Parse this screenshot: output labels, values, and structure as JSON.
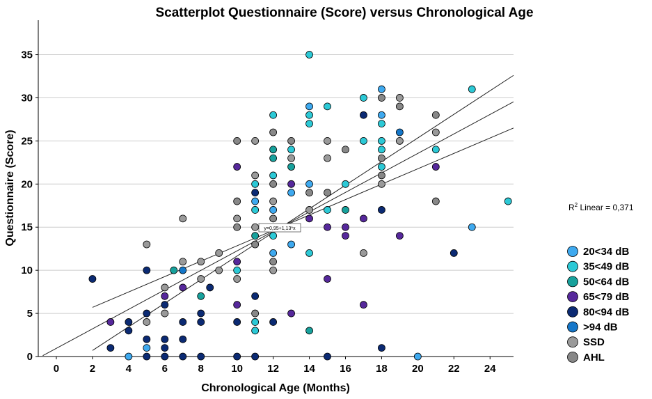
{
  "chart_data": {
    "type": "scatter",
    "title": "Scatterplot  Questionnaire (Score) versus Chronological Age",
    "xlabel": "Chronological Age (Months)",
    "ylabel": "Questionnaire (Score)",
    "xlim": [
      -1,
      25.3
    ],
    "ylim": [
      0,
      39
    ],
    "xticks": [
      "0",
      "2",
      "4",
      "6",
      "8",
      "10",
      "12",
      "14",
      "16",
      "18",
      "20",
      "22",
      "24"
    ],
    "xtick_values": [
      0,
      2,
      4,
      6,
      8,
      10,
      12,
      14,
      16,
      18,
      20,
      22,
      24
    ],
    "yticks": [
      "0",
      "5",
      "10",
      "15",
      "20",
      "25",
      "30",
      "35"
    ],
    "ytick_values": [
      0,
      5,
      10,
      15,
      20,
      25,
      30,
      35
    ],
    "grid": "horizontal",
    "r2_prefix": "R",
    "r2_sup": "2",
    "r2_text": " Linear = 0,371",
    "fit_equation": "y=0,95+1,13*x",
    "fit": {
      "intercept": 0.95,
      "slope": 1.13,
      "ci_upper": [
        [
          2,
          5.7
        ],
        [
          25.3,
          26.5
        ]
      ],
      "ci_lower": [
        [
          2,
          0.7
        ],
        [
          25.3,
          32.6
        ]
      ]
    },
    "series": [
      {
        "name": "20<34 dB",
        "color": "#3ea9ef",
        "points": [
          [
            4,
            0
          ],
          [
            5,
            1
          ],
          [
            11,
            18
          ],
          [
            12,
            17
          ],
          [
            12,
            12
          ],
          [
            13,
            19
          ],
          [
            14,
            29
          ],
          [
            14,
            20
          ],
          [
            18,
            31
          ],
          [
            18,
            28
          ],
          [
            23,
            15
          ],
          [
            13,
            13
          ],
          [
            20,
            0
          ]
        ]
      },
      {
        "name": "35<49 dB",
        "color": "#2cc9d6",
        "points": [
          [
            10,
            10
          ],
          [
            11,
            20
          ],
          [
            11,
            17
          ],
          [
            11,
            4
          ],
          [
            11,
            3
          ],
          [
            12,
            28
          ],
          [
            12,
            21
          ],
          [
            12,
            14
          ],
          [
            13,
            24
          ],
          [
            14,
            35
          ],
          [
            14,
            28
          ],
          [
            14,
            27
          ],
          [
            14,
            12
          ],
          [
            15,
            29
          ],
          [
            15,
            17
          ],
          [
            16,
            20
          ],
          [
            17,
            30
          ],
          [
            17,
            25
          ],
          [
            18,
            27
          ],
          [
            18,
            25
          ],
          [
            18,
            24
          ],
          [
            18,
            22
          ],
          [
            21,
            24
          ],
          [
            23,
            31
          ],
          [
            25,
            18
          ]
        ]
      },
      {
        "name": "50<64 dB",
        "color": "#17a19c",
        "points": [
          [
            6.5,
            10
          ],
          [
            8,
            7
          ],
          [
            11,
            14
          ],
          [
            12,
            24
          ],
          [
            12,
            23
          ],
          [
            13,
            22
          ],
          [
            14,
            3
          ],
          [
            16,
            17
          ]
        ]
      },
      {
        "name": "65<79 dB",
        "color": "#56289b",
        "points": [
          [
            3,
            4
          ],
          [
            6,
            7
          ],
          [
            7,
            8
          ],
          [
            10,
            22
          ],
          [
            10,
            11
          ],
          [
            10,
            6
          ],
          [
            13,
            20
          ],
          [
            13,
            5
          ],
          [
            14,
            16
          ],
          [
            15,
            15
          ],
          [
            15,
            9
          ],
          [
            16,
            15
          ],
          [
            16,
            14
          ],
          [
            17,
            16
          ],
          [
            17,
            6
          ],
          [
            19,
            14
          ],
          [
            21,
            22
          ]
        ]
      },
      {
        "name": "80<94 dB",
        "color": "#0b2a73",
        "points": [
          [
            2,
            9
          ],
          [
            3,
            1
          ],
          [
            4,
            4
          ],
          [
            4,
            3
          ],
          [
            5,
            10
          ],
          [
            5,
            5
          ],
          [
            5,
            2
          ],
          [
            5,
            0
          ],
          [
            6,
            6
          ],
          [
            6,
            2
          ],
          [
            6,
            1
          ],
          [
            6,
            0
          ],
          [
            7,
            4
          ],
          [
            7,
            2
          ],
          [
            7,
            0
          ],
          [
            8,
            5
          ],
          [
            8,
            4
          ],
          [
            8,
            0
          ],
          [
            8.5,
            8
          ],
          [
            10,
            4
          ],
          [
            10,
            0
          ],
          [
            11,
            19
          ],
          [
            11,
            7
          ],
          [
            11,
            0
          ],
          [
            12,
            4
          ],
          [
            15,
            0
          ],
          [
            17,
            28
          ],
          [
            18,
            17
          ],
          [
            18,
            1
          ],
          [
            22,
            12
          ]
        ]
      },
      {
        "name": ">94 dB",
        "color": "#1577c9",
        "points": [
          [
            7,
            10
          ],
          [
            19,
            26
          ]
        ]
      },
      {
        "name": "SSD",
        "color": "#9a9a9a",
        "points": [
          [
            5,
            13
          ],
          [
            5,
            4
          ],
          [
            6,
            8
          ],
          [
            6,
            5
          ],
          [
            7,
            16
          ],
          [
            7,
            11
          ],
          [
            8,
            11
          ],
          [
            8,
            9
          ],
          [
            9,
            12
          ],
          [
            9,
            10
          ],
          [
            10,
            16
          ],
          [
            10,
            9
          ],
          [
            11,
            25
          ],
          [
            11,
            21
          ],
          [
            11,
            15
          ],
          [
            12,
            18
          ],
          [
            12,
            10
          ],
          [
            13,
            23
          ],
          [
            14,
            17
          ],
          [
            15,
            25
          ],
          [
            15,
            23
          ],
          [
            17,
            12
          ],
          [
            18,
            20
          ],
          [
            19,
            30
          ],
          [
            19,
            25
          ],
          [
            21,
            26
          ]
        ]
      },
      {
        "name": "AHL",
        "color": "#888888",
        "points": [
          [
            10,
            25
          ],
          [
            10,
            18
          ],
          [
            10,
            15
          ],
          [
            11,
            13
          ],
          [
            11,
            5
          ],
          [
            12,
            26
          ],
          [
            12,
            20
          ],
          [
            12,
            16
          ],
          [
            12,
            11
          ],
          [
            13,
            25
          ],
          [
            14,
            19
          ],
          [
            15,
            19
          ],
          [
            16,
            24
          ],
          [
            18,
            30
          ],
          [
            18,
            23
          ],
          [
            18,
            21
          ],
          [
            19,
            29
          ],
          [
            21,
            28
          ],
          [
            21,
            18
          ]
        ]
      }
    ]
  }
}
